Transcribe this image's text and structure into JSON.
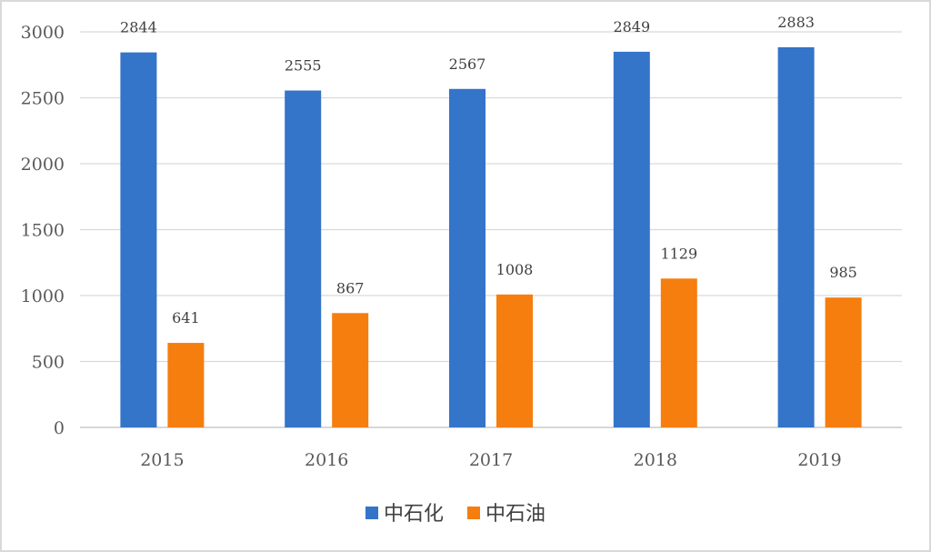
{
  "chart_data": {
    "type": "bar",
    "categories": [
      "2015",
      "2016",
      "2017",
      "2018",
      "2019"
    ],
    "series": [
      {
        "name": "中石化",
        "values": [
          2844,
          2555,
          2567,
          2849,
          2883
        ],
        "color": "#3474C9"
      },
      {
        "name": "中石油",
        "values": [
          641,
          867,
          1008,
          1129,
          985
        ],
        "color": "#F57E0F"
      }
    ],
    "ylim": [
      0,
      3000
    ],
    "yticks": [
      0,
      500,
      1000,
      1500,
      2000,
      2500,
      3000
    ],
    "grid": true,
    "legend": "bottom",
    "title": "",
    "xlabel": "",
    "ylabel": ""
  },
  "colors": {
    "grid": "#d9d9d9",
    "axis": "#bfbfbf"
  }
}
